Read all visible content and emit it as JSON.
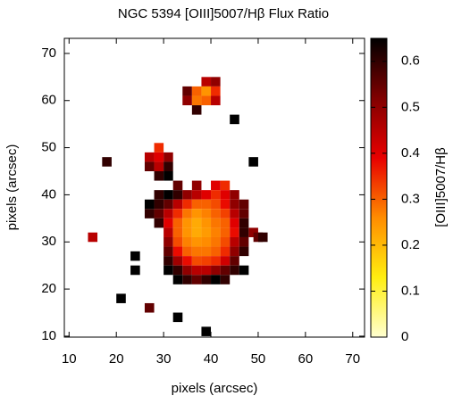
{
  "chart_data": {
    "type": "heatmap",
    "title": "NGC 5394 [OIII]5007/Hβ Flux Ratio",
    "xlabel": "pixels (arcsec)",
    "ylabel": "pixels (arcsec)",
    "colorbar_label": "[OIII]5007/Hβ",
    "xlim": [
      9,
      72.5
    ],
    "ylim": [
      9.8,
      73.2
    ],
    "xticks": [
      10,
      20,
      30,
      40,
      50,
      60,
      70
    ],
    "yticks": [
      10,
      20,
      30,
      40,
      50,
      60,
      70
    ],
    "clim": [
      0,
      0.65
    ],
    "cticks": [
      0,
      0.1,
      0.2,
      0.3,
      0.4,
      0.5,
      0.6
    ],
    "colormap": [
      "#ffffd0",
      "#ffee10",
      "#ff8c00",
      "#e80000",
      "#800000",
      "#000000"
    ],
    "x": [
      33,
      37,
      41,
      43,
      29,
      31,
      33,
      35,
      37,
      39,
      41,
      43,
      45,
      27,
      29,
      31,
      33,
      35,
      37,
      39,
      41,
      43,
      45,
      47,
      27,
      29,
      31,
      33,
      35,
      37,
      39,
      41,
      43,
      45,
      47,
      29,
      31,
      33,
      35,
      37,
      39,
      41,
      43,
      45,
      47,
      31,
      33,
      35,
      37,
      39,
      41,
      43,
      45,
      47,
      49,
      31,
      33,
      35,
      37,
      39,
      41,
      43,
      45,
      47,
      31,
      33,
      35,
      37,
      39,
      41,
      43,
      45,
      47,
      31,
      33,
      35,
      37,
      39,
      41,
      43,
      45,
      31,
      33,
      35,
      37,
      39,
      41,
      43,
      45,
      47,
      33,
      35,
      37,
      39,
      41,
      43,
      29,
      27,
      29,
      31,
      27,
      29,
      31,
      29,
      31,
      39,
      41,
      35,
      37,
      39,
      41,
      35,
      37,
      39,
      41,
      37,
      15,
      18,
      21,
      24,
      27,
      33,
      39,
      49,
      50,
      45,
      24,
      51
    ],
    "y": [
      42,
      42,
      42,
      42,
      40,
      40,
      40,
      40,
      40,
      40,
      40,
      40,
      40,
      38,
      38,
      38,
      38,
      38,
      38,
      38,
      38,
      38,
      38,
      38,
      36,
      36,
      36,
      36,
      36,
      36,
      36,
      36,
      36,
      36,
      36,
      34,
      34,
      34,
      34,
      34,
      34,
      34,
      34,
      34,
      34,
      32,
      32,
      32,
      32,
      32,
      32,
      32,
      32,
      32,
      32,
      30,
      30,
      30,
      30,
      30,
      30,
      30,
      30,
      30,
      28,
      28,
      28,
      28,
      28,
      28,
      28,
      28,
      28,
      26,
      26,
      26,
      26,
      26,
      26,
      26,
      26,
      24,
      24,
      24,
      24,
      24,
      24,
      24,
      24,
      24,
      22,
      22,
      22,
      22,
      22,
      22,
      50,
      48,
      48,
      48,
      46,
      46,
      46,
      44,
      44,
      64,
      64,
      62,
      62,
      62,
      62,
      60,
      60,
      60,
      60,
      58,
      31,
      47,
      18,
      24,
      16,
      14,
      11,
      47,
      31,
      56,
      27,
      31
    ],
    "values": [
      0.55,
      0.5,
      0.4,
      0.35,
      0.6,
      0.65,
      0.6,
      0.5,
      0.45,
      0.4,
      0.35,
      0.4,
      0.5,
      0.65,
      0.6,
      0.55,
      0.45,
      0.35,
      0.3,
      0.3,
      0.32,
      0.38,
      0.5,
      0.55,
      0.6,
      0.55,
      0.45,
      0.35,
      0.28,
      0.25,
      0.27,
      0.3,
      0.33,
      0.45,
      0.55,
      0.6,
      0.4,
      0.3,
      0.25,
      0.22,
      0.25,
      0.28,
      0.3,
      0.4,
      0.6,
      0.45,
      0.3,
      0.25,
      0.22,
      0.24,
      0.27,
      0.3,
      0.38,
      0.6,
      0.5,
      0.5,
      0.32,
      0.27,
      0.25,
      0.26,
      0.28,
      0.32,
      0.45,
      0.55,
      0.55,
      0.38,
      0.3,
      0.28,
      0.28,
      0.3,
      0.35,
      0.5,
      0.6,
      0.6,
      0.48,
      0.38,
      0.32,
      0.33,
      0.35,
      0.42,
      0.55,
      0.65,
      0.6,
      0.5,
      0.45,
      0.45,
      0.5,
      0.55,
      0.6,
      0.65,
      0.65,
      0.6,
      0.55,
      0.6,
      0.65,
      0.6,
      0.35,
      0.45,
      0.4,
      0.5,
      0.55,
      0.45,
      0.6,
      0.6,
      0.65,
      0.45,
      0.5,
      0.55,
      0.3,
      0.25,
      0.35,
      0.5,
      0.28,
      0.3,
      0.45,
      0.6,
      0.45,
      0.6,
      0.65,
      0.65,
      0.55,
      0.65,
      0.65,
      0.65,
      0.55,
      0.65,
      0.65,
      0.6
    ]
  }
}
